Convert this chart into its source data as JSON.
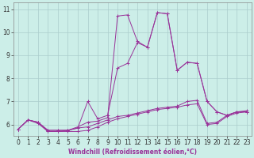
{
  "xlabel": "Windchill (Refroidissement éolien,°C)",
  "bg_color": "#cceee8",
  "line_color": "#993399",
  "grid_color": "#aacccc",
  "xlim": [
    -0.5,
    23.5
  ],
  "ylim": [
    5.5,
    11.3
  ],
  "xticks": [
    0,
    1,
    2,
    3,
    4,
    5,
    6,
    7,
    8,
    9,
    10,
    11,
    12,
    13,
    14,
    15,
    16,
    17,
    18,
    19,
    20,
    21,
    22,
    23
  ],
  "yticks": [
    6,
    7,
    8,
    9,
    10,
    11
  ],
  "lines": [
    [
      5.8,
      6.2,
      6.1,
      5.7,
      5.7,
      5.7,
      5.7,
      5.75,
      5.9,
      6.1,
      6.25,
      6.35,
      6.45,
      6.55,
      6.65,
      6.7,
      6.75,
      6.85,
      6.9,
      6.0,
      6.05,
      6.35,
      6.5,
      6.55
    ],
    [
      5.8,
      6.2,
      6.1,
      5.75,
      5.75,
      5.75,
      5.85,
      5.9,
      6.05,
      6.2,
      6.35,
      6.4,
      6.5,
      6.6,
      6.7,
      6.75,
      6.8,
      7.0,
      7.05,
      6.05,
      6.1,
      6.4,
      6.55,
      6.6
    ],
    [
      5.8,
      6.2,
      6.05,
      5.7,
      5.7,
      5.75,
      5.85,
      7.0,
      6.25,
      6.4,
      8.45,
      8.65,
      9.55,
      9.35,
      10.85,
      10.8,
      8.35,
      8.7,
      8.65,
      7.0,
      6.55,
      6.4,
      6.55,
      6.55
    ],
    [
      5.8,
      6.2,
      6.1,
      5.75,
      5.75,
      5.75,
      5.9,
      6.1,
      6.15,
      6.3,
      10.7,
      10.75,
      9.6,
      9.35,
      10.85,
      10.8,
      8.35,
      8.7,
      8.65,
      7.0,
      6.55,
      6.4,
      6.55,
      6.55
    ]
  ],
  "tick_fontsize": 5.5,
  "xlabel_fontsize": 5.5
}
